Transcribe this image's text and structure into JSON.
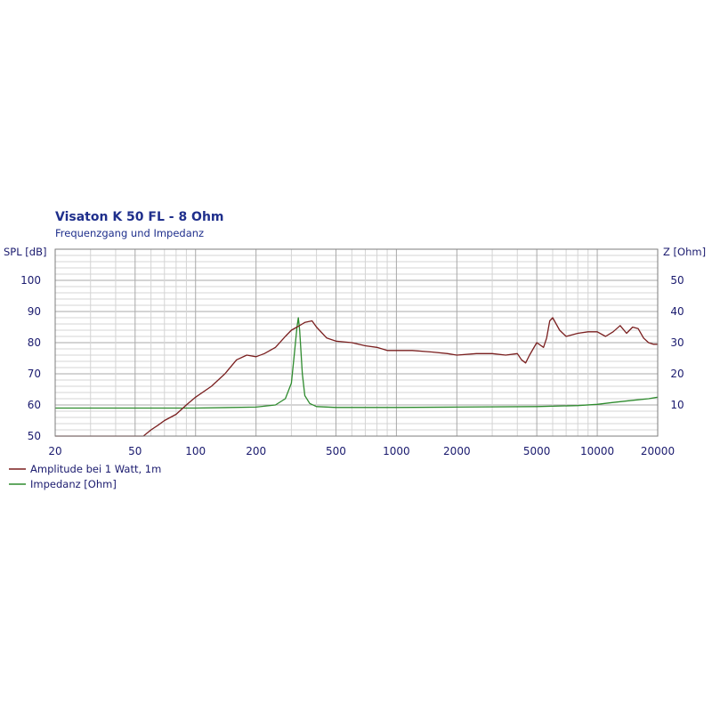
{
  "chart_data": {
    "type": "line",
    "title": "Visaton K 50 FL - 8 Ohm",
    "subtitle": "Frequenzgang und Impedanz",
    "x_scale": "log",
    "xlim": [
      20,
      20000
    ],
    "x_ticks": [
      20,
      50,
      100,
      200,
      500,
      1000,
      2000,
      5000,
      10000,
      20000
    ],
    "ylabel_left": "SPL [dB]",
    "ylim_left": [
      50,
      110
    ],
    "y_ticks_left": [
      50,
      60,
      70,
      80,
      90,
      100
    ],
    "ylabel_right": "Z [Ohm]",
    "ylim_right": [
      0,
      60
    ],
    "y_ticks_right": [
      10,
      20,
      30,
      40,
      50
    ],
    "grid": true,
    "legend_position": "bottom-left",
    "series": [
      {
        "name": "Amplitude bei 1 Watt, 1m",
        "color": "#7a1f1f",
        "axis": "left",
        "x": [
          20,
          55,
          60,
          65,
          70,
          80,
          90,
          100,
          120,
          140,
          160,
          180,
          200,
          220,
          250,
          280,
          300,
          320,
          350,
          380,
          400,
          450,
          500,
          600,
          700,
          800,
          900,
          1000,
          1200,
          1500,
          1800,
          2000,
          2500,
          3000,
          3500,
          4000,
          4200,
          4400,
          4600,
          5000,
          5400,
          5600,
          5800,
          6000,
          6500,
          7000,
          8000,
          9000,
          10000,
          11000,
          12000,
          13000,
          14000,
          15000,
          16000,
          17000,
          18000,
          19000,
          20000
        ],
        "y": [
          50,
          50,
          52,
          53.5,
          55,
          57,
          60,
          62.5,
          66,
          70,
          74.5,
          76,
          75.5,
          76.5,
          78.5,
          82,
          84,
          85,
          86.5,
          87,
          85,
          81.5,
          80.5,
          80,
          79,
          78.5,
          77.5,
          77.5,
          77.5,
          77,
          76.5,
          76,
          76.5,
          76.5,
          76,
          76.5,
          74.5,
          73.5,
          76,
          80,
          78.5,
          81.5,
          87,
          88,
          84,
          82,
          83,
          83.5,
          83.5,
          82,
          83.5,
          85.5,
          83,
          85,
          84.5,
          81.5,
          80,
          79.5,
          79.5
        ]
      },
      {
        "name": "Impedanz [Ohm]",
        "color": "#2e8b2e",
        "axis": "right",
        "x": [
          20,
          100,
          200,
          250,
          280,
          300,
          310,
          320,
          325,
          330,
          340,
          350,
          370,
          400,
          500,
          1000,
          2000,
          5000,
          8000,
          10000,
          12000,
          15000,
          18000,
          20000
        ],
        "y": [
          9,
          9,
          9.3,
          10,
          12,
          17,
          26,
          35,
          38,
          34,
          20,
          13,
          10.5,
          9.5,
          9.2,
          9.2,
          9.3,
          9.5,
          9.8,
          10.2,
          10.8,
          11.5,
          12,
          12.5
        ]
      }
    ]
  }
}
